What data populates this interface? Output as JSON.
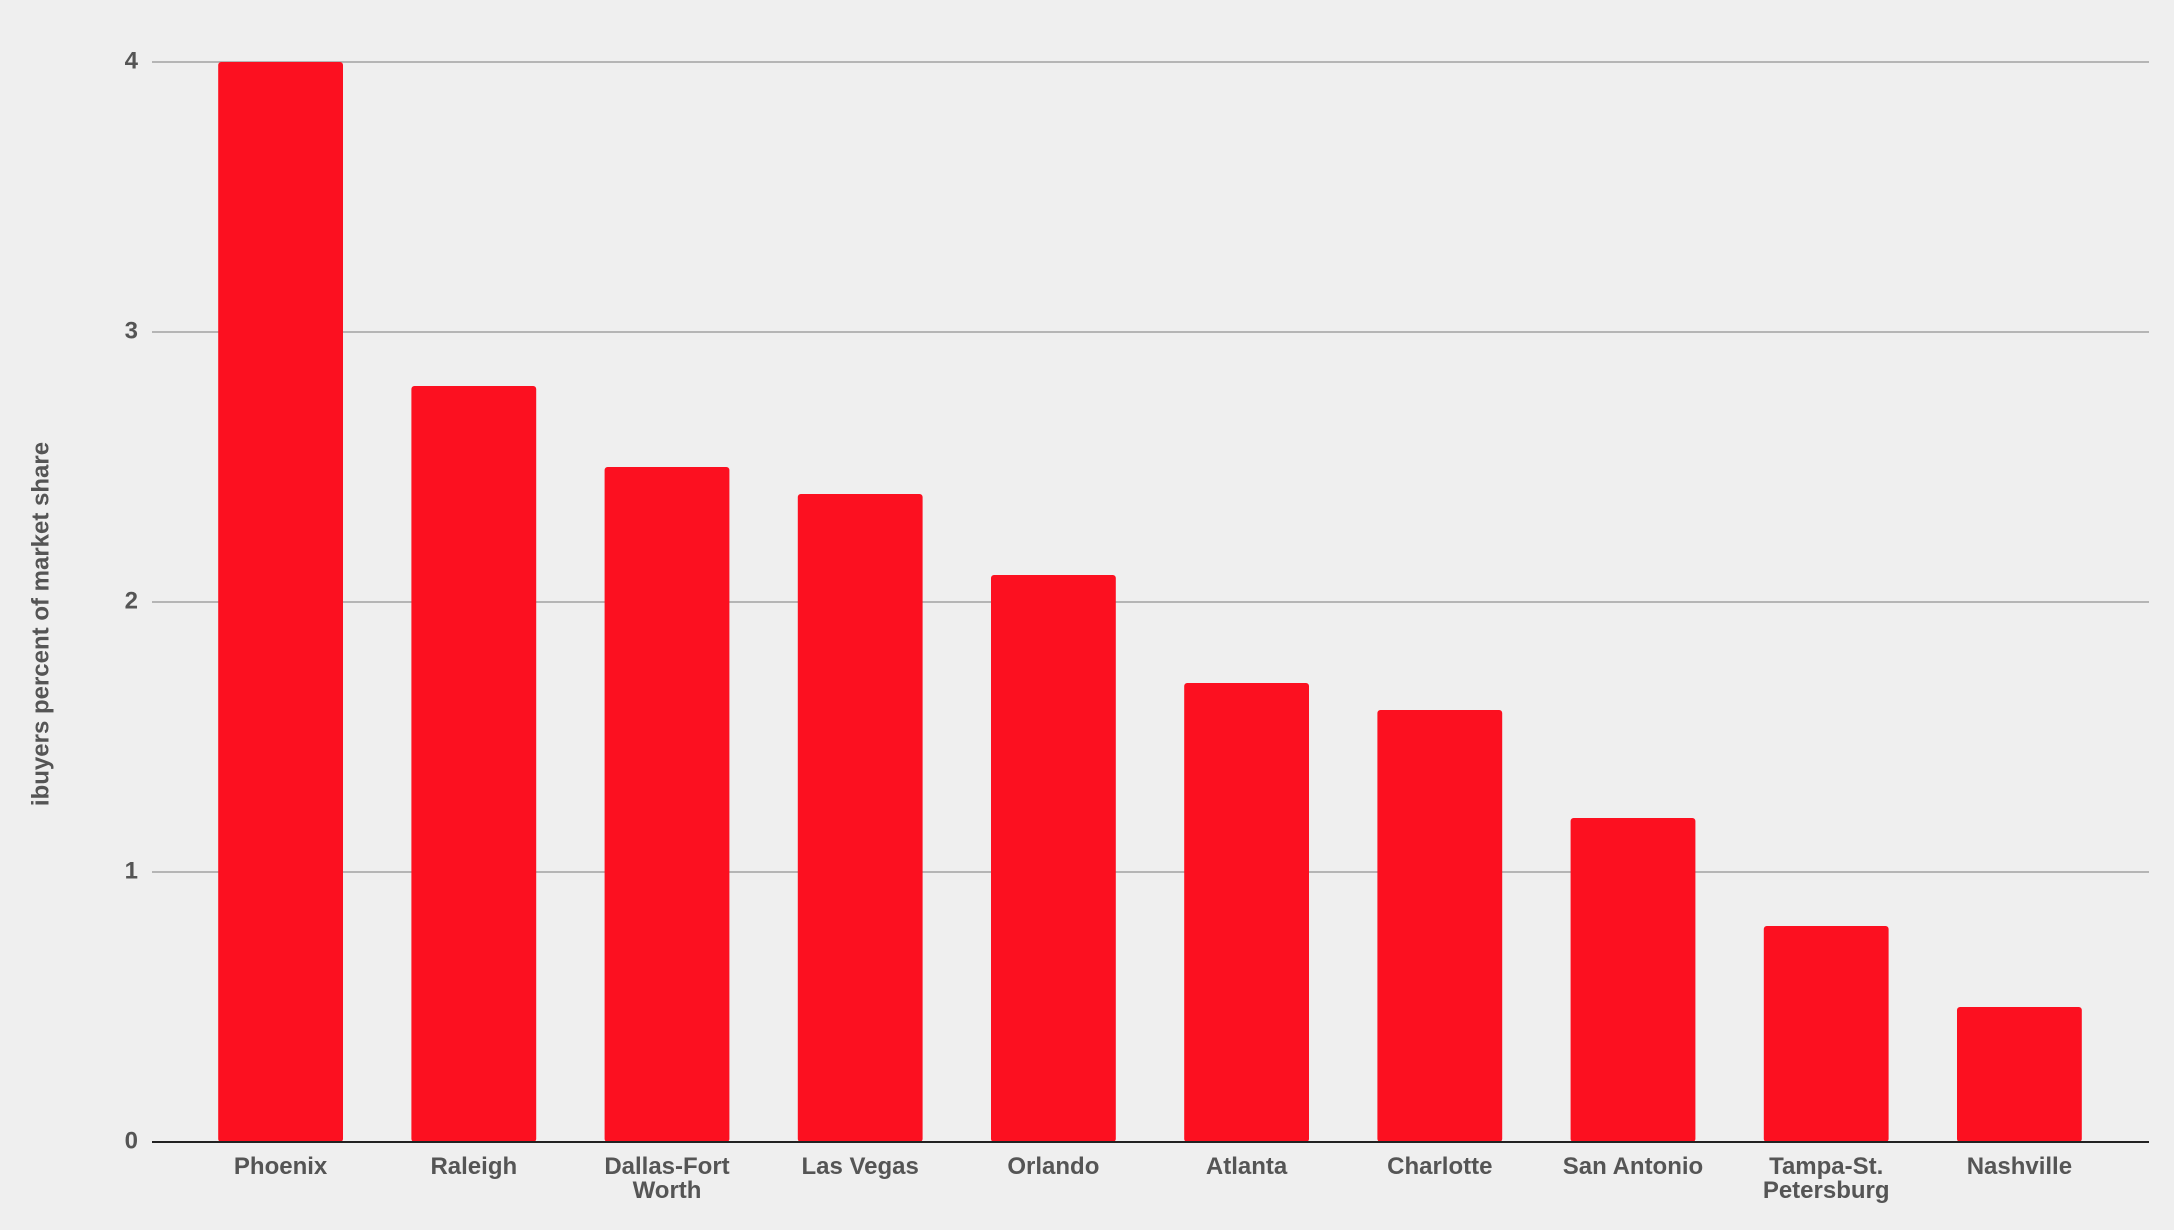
{
  "chart_data": {
    "type": "bar",
    "y_label": "ibuyers percent of market share",
    "categories": [
      "Phoenix",
      "Raleigh",
      "Dallas-Fort Worth",
      "Las Vegas",
      "Orlando",
      "Atlanta",
      "Charlotte",
      "San Antonio",
      "Tampa-St. Petersburg",
      "Nashville"
    ],
    "values": [
      4,
      2.8,
      2.5,
      2.4,
      2.1,
      1.7,
      1.6,
      1.2,
      0.8,
      0.5
    ],
    "color": "#fc1020",
    "ylim": [
      0,
      4
    ],
    "yticks": [
      0,
      1,
      2,
      3,
      4
    ],
    "grid": true
  }
}
